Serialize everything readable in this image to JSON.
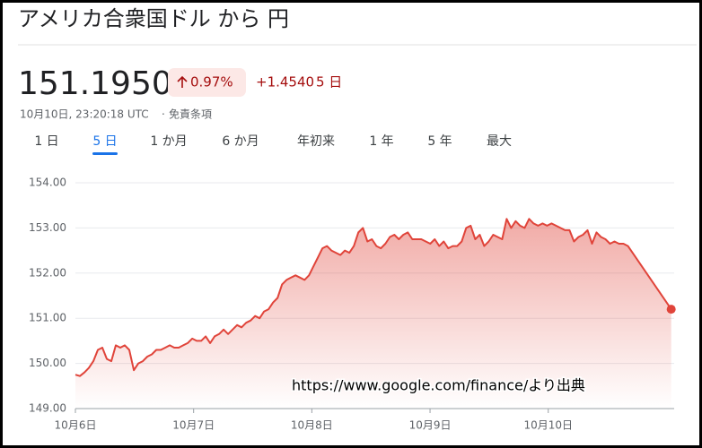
{
  "header": {
    "title": "アメリカ合衆国ドル から 円"
  },
  "quote": {
    "price": "151.1950",
    "change_percent": "0.97%",
    "change": "+1.4540",
    "period": "5 日",
    "timestamp": "10月10日, 23:20:18 UTC",
    "disclaimer": "免責条項"
  },
  "tabs": [
    "1 日",
    "5 日",
    "1 か月",
    "6 か月",
    "年初来",
    "1 年",
    "5 年",
    "最大"
  ],
  "selected_tab": 1,
  "chart_data": {
    "type": "line",
    "x": [
      0,
      0.038,
      0.076,
      0.114,
      0.152,
      0.19,
      0.228,
      0.266,
      0.304,
      0.342,
      0.38,
      0.418,
      0.456,
      0.494,
      0.532,
      0.57,
      0.608,
      0.646,
      0.684,
      0.722,
      0.76,
      0.798,
      0.836,
      0.874,
      0.912,
      0.95,
      0.988,
      1.026,
      1.064,
      1.102,
      1.14,
      1.178,
      1.216,
      1.254,
      1.292,
      1.33,
      1.368,
      1.406,
      1.444,
      1.482,
      1.52,
      1.558,
      1.596,
      1.634,
      1.672,
      1.71,
      1.748,
      1.786,
      1.824,
      1.862,
      1.9,
      1.938,
      1.976,
      2.014,
      2.052,
      2.09,
      2.128,
      2.166,
      2.204,
      2.242,
      2.28,
      2.318,
      2.356,
      2.394,
      2.432,
      2.47,
      2.508,
      2.546,
      2.584,
      2.622,
      2.66,
      2.698,
      2.736,
      2.774,
      2.812,
      2.85,
      2.888,
      2.926,
      2.964,
      3.002,
      3.04,
      3.078,
      3.116,
      3.154,
      3.192,
      3.23,
      3.268,
      3.306,
      3.344,
      3.382,
      3.42,
      3.458,
      3.496,
      3.534,
      3.572,
      3.61,
      3.648,
      3.686,
      3.724,
      3.762,
      3.8,
      3.838,
      3.876,
      3.914,
      3.952,
      3.99,
      4.028,
      4.066,
      4.104,
      4.142,
      4.18,
      4.218,
      4.256,
      4.294,
      4.332,
      4.37,
      4.408,
      4.446,
      4.484,
      4.522,
      4.56,
      4.598,
      4.636,
      4.674,
      5.04
    ],
    "values": [
      149.75,
      149.72,
      149.8,
      149.9,
      150.05,
      150.3,
      150.35,
      150.1,
      150.05,
      150.4,
      150.35,
      150.4,
      150.3,
      149.85,
      150.0,
      150.05,
      150.15,
      150.2,
      150.3,
      150.3,
      150.35,
      150.4,
      150.35,
      150.35,
      150.4,
      150.45,
      150.55,
      150.5,
      150.5,
      150.6,
      150.45,
      150.6,
      150.65,
      150.75,
      150.65,
      150.75,
      150.85,
      150.8,
      150.9,
      150.95,
      151.05,
      151.0,
      151.15,
      151.2,
      151.35,
      151.45,
      151.75,
      151.85,
      151.9,
      151.95,
      151.9,
      151.85,
      151.95,
      152.15,
      152.35,
      152.55,
      152.6,
      152.5,
      152.45,
      152.4,
      152.5,
      152.45,
      152.6,
      152.9,
      153.0,
      152.7,
      152.75,
      152.6,
      152.55,
      152.65,
      152.8,
      152.85,
      152.75,
      152.85,
      152.9,
      152.75,
      152.75,
      152.75,
      152.7,
      152.65,
      152.75,
      152.6,
      152.7,
      152.55,
      152.6,
      152.6,
      152.7,
      153.0,
      153.05,
      152.75,
      152.85,
      152.6,
      152.7,
      152.85,
      152.8,
      152.75,
      153.2,
      153.0,
      153.15,
      153.05,
      153.0,
      153.2,
      153.1,
      153.05,
      153.1,
      153.05,
      153.1,
      153.05,
      153.0,
      152.95,
      152.95,
      152.7,
      152.8,
      152.85,
      152.95,
      152.65,
      152.9,
      152.8,
      152.75,
      152.65,
      152.7,
      152.65,
      152.65,
      152.6,
      151.2
    ],
    "color": "#e0443a",
    "xlim": [
      0,
      5.05
    ],
    "xticks": [
      {
        "value": 0,
        "label": "10月6日"
      },
      {
        "value": 1,
        "label": "10月7日"
      },
      {
        "value": 2,
        "label": "10月8日"
      },
      {
        "value": 3,
        "label": "10月9日"
      },
      {
        "value": 4,
        "label": "10月10日"
      }
    ],
    "ylim": [
      149,
      154
    ],
    "yticks": [
      {
        "value": 149,
        "label": "149.00"
      },
      {
        "value": 150,
        "label": "150.00"
      },
      {
        "value": 151,
        "label": "151.00"
      },
      {
        "value": 152,
        "label": "152.00"
      },
      {
        "value": 153,
        "label": "153.00"
      },
      {
        "value": 154,
        "label": "154.00"
      }
    ],
    "grid": true,
    "annotation": "https://www.google.com/finance/より出典"
  }
}
